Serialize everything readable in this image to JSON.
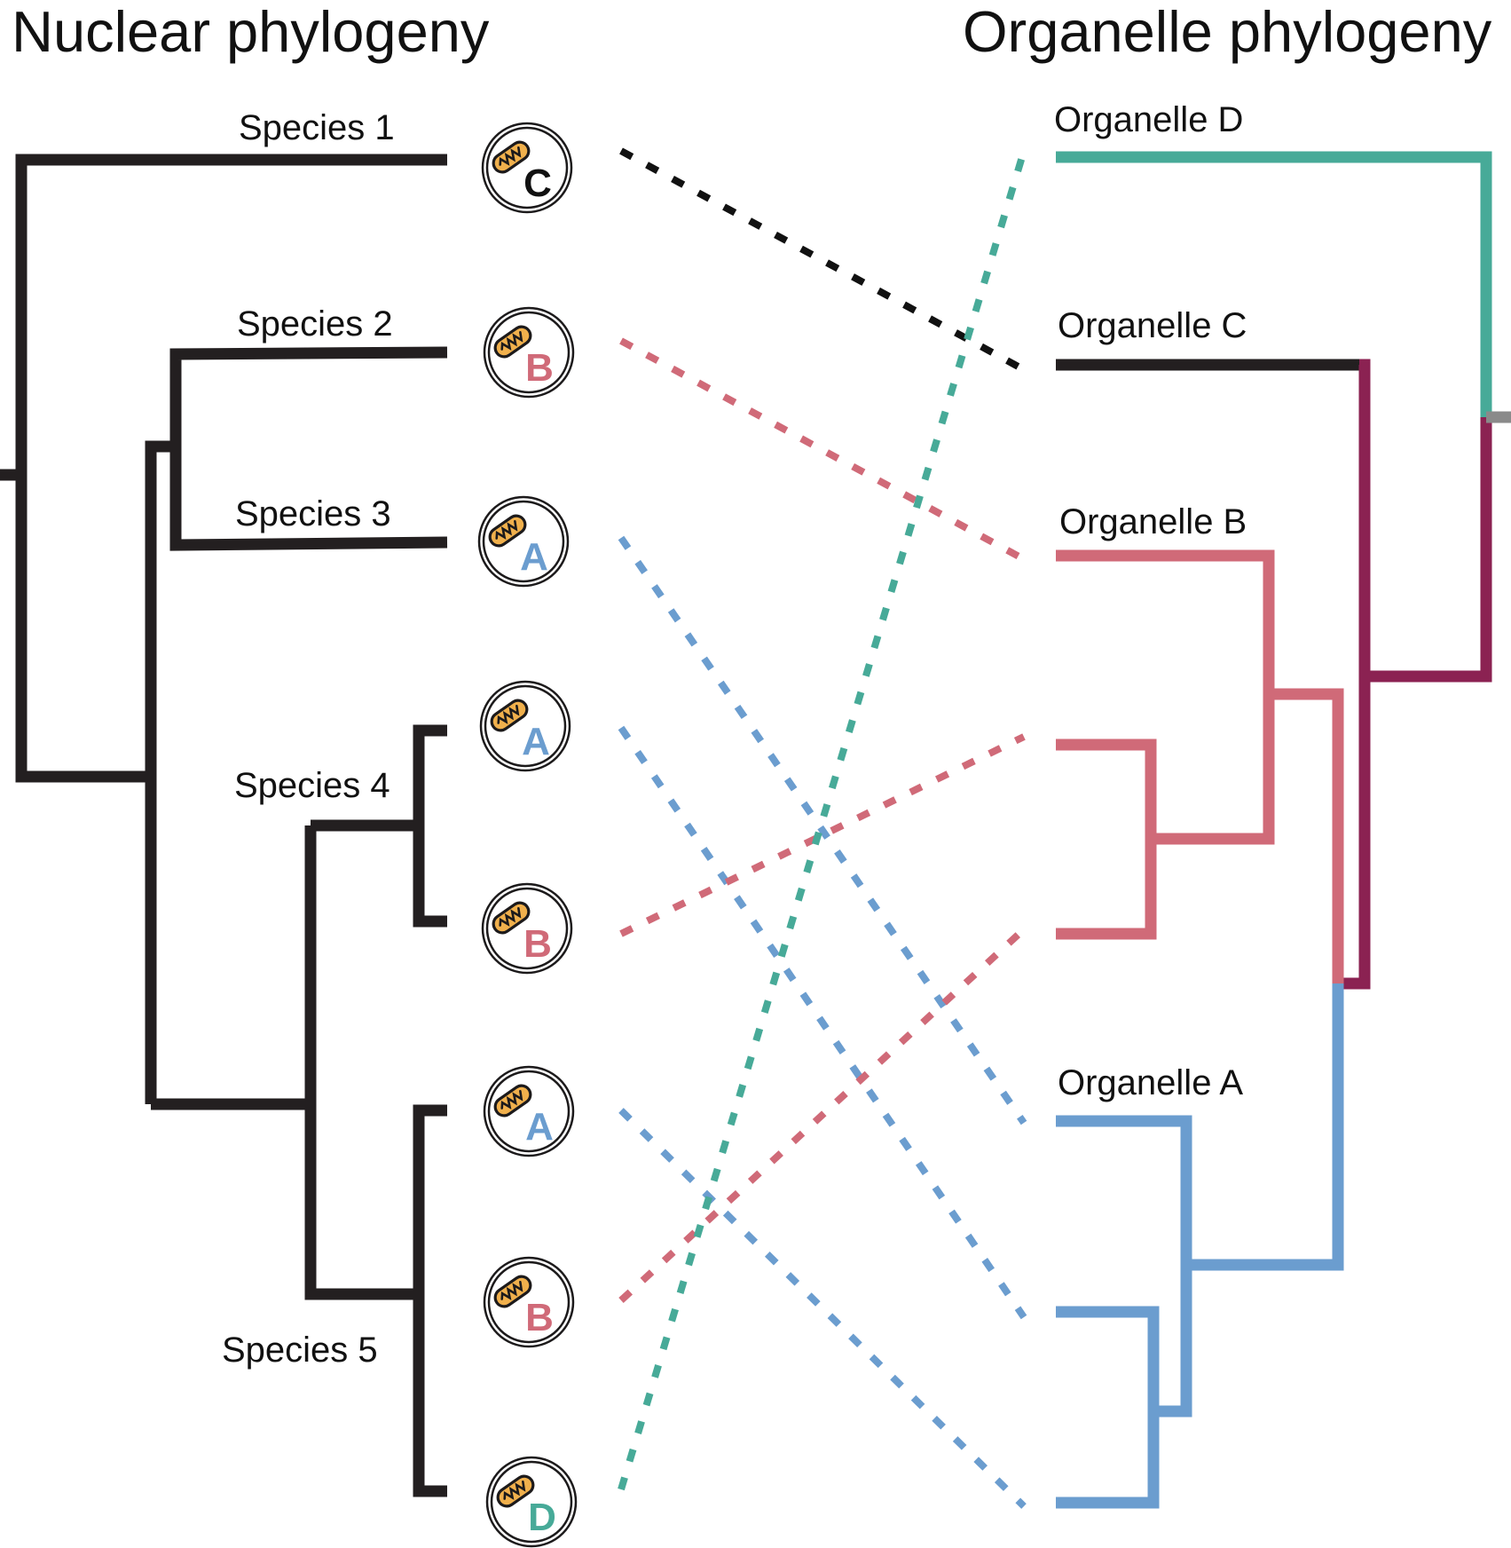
{
  "titles": {
    "nuclear": "Nuclear phylogeny",
    "organelle": "Organelle phylogeny"
  },
  "species_labels": [
    "Species 1",
    "Species 2",
    "Species 3",
    "Species 4",
    "Species 5"
  ],
  "organelle_labels": [
    "Organelle D",
    "Organelle C",
    "Organelle B",
    "Organelle A"
  ],
  "mitochondria": [
    {
      "species": "Species 1",
      "letter": "C"
    },
    {
      "species": "Species 2",
      "letter": "B"
    },
    {
      "species": "Species 3",
      "letter": "A"
    },
    {
      "species": "Species 4",
      "letter": "A"
    },
    {
      "species": "Species 4",
      "letter": "B"
    },
    {
      "species": "Species 5",
      "letter": "A"
    },
    {
      "species": "Species 5",
      "letter": "B"
    },
    {
      "species": "Species 5",
      "letter": "D"
    }
  ],
  "colors": {
    "nuclear_tree": "#231f20",
    "organelle_A": "#6b9dcf",
    "organelle_B": "#d06a78",
    "organelle_C": "#231f20",
    "organelle_D": "#47aa98",
    "deep_branch": "#8b2252",
    "root_stub": "#8a8a8a",
    "mitochondrion": "#f0b04c"
  }
}
